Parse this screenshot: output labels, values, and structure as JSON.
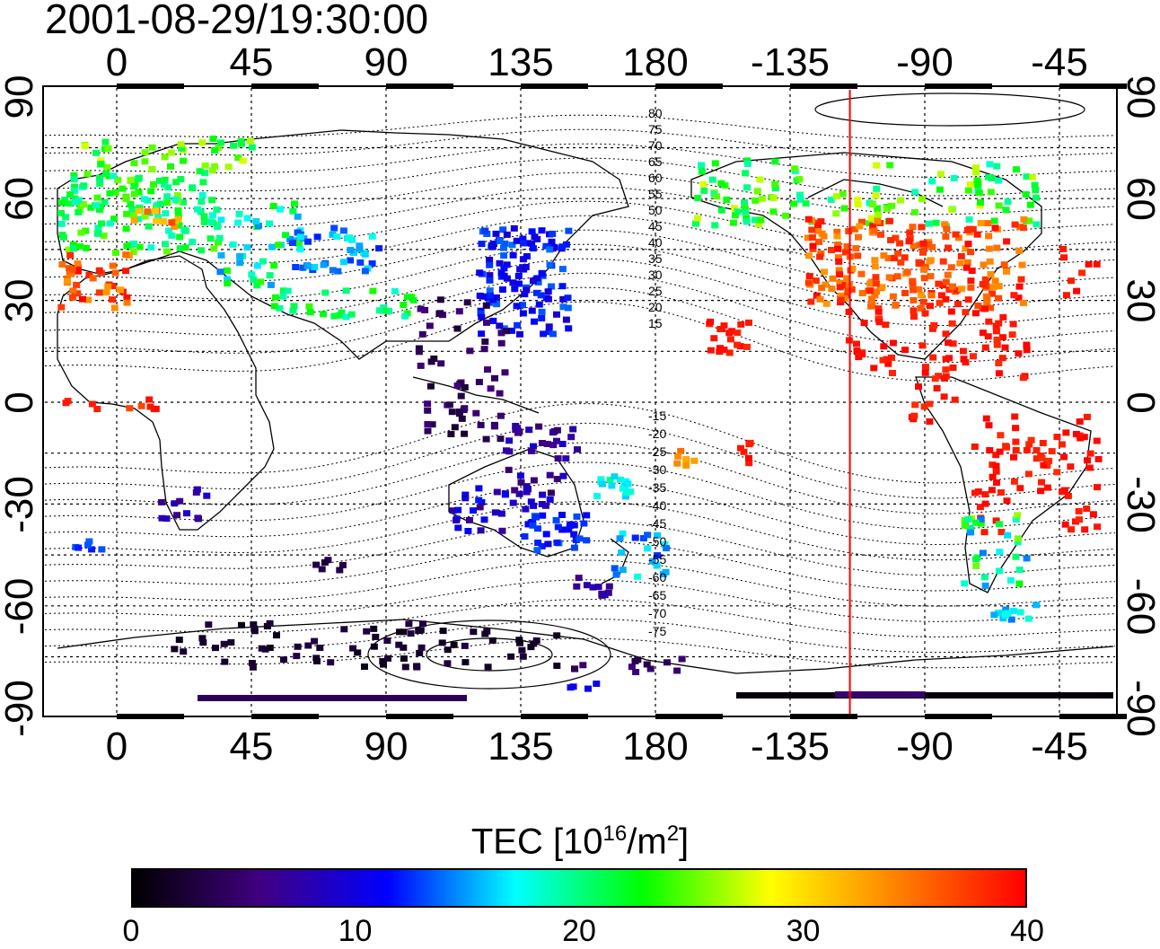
{
  "title": "2001-08-29/19:30:00",
  "top_axis_ticks": [
    "0",
    "45",
    "90",
    "135",
    "180",
    "-135",
    "-90",
    "-45"
  ],
  "bottom_axis_ticks": [
    "0",
    "45",
    "90",
    "135",
    "180",
    "-135",
    "-90",
    "-45"
  ],
  "left_axis_ticks": [
    "90",
    "60",
    "30",
    "0",
    "-30",
    "-60",
    "-90"
  ],
  "right_axis_ticks": [
    "90",
    "60",
    "30",
    "0",
    "-30",
    "-60",
    "-90"
  ],
  "contour_labels": [
    "80",
    "75",
    "70",
    "65",
    "60",
    "55",
    "50",
    "45",
    "40",
    "35",
    "30",
    "25",
    "20",
    "15",
    "-15",
    "-20",
    "-25",
    "-30",
    "-35",
    "-40",
    "-45",
    "-50",
    "-55",
    "-60",
    "-65",
    "-70",
    "-75"
  ],
  "colorbar": {
    "title": "TEC  [10",
    "title_sup1": "16",
    "title_mid": "/m",
    "title_sup2": "2",
    "title_end": "]",
    "ticks": [
      "0",
      "10",
      "20",
      "30",
      "40"
    ],
    "range": [
      0,
      40
    ],
    "colors": [
      "#000000",
      "#400080",
      "#0000ff",
      "#00ffff",
      "#00ff00",
      "#ffff00",
      "#ff8000",
      "#ff0000"
    ]
  },
  "terminator_longitude": -115,
  "terminator_color": "#ff0000"
}
